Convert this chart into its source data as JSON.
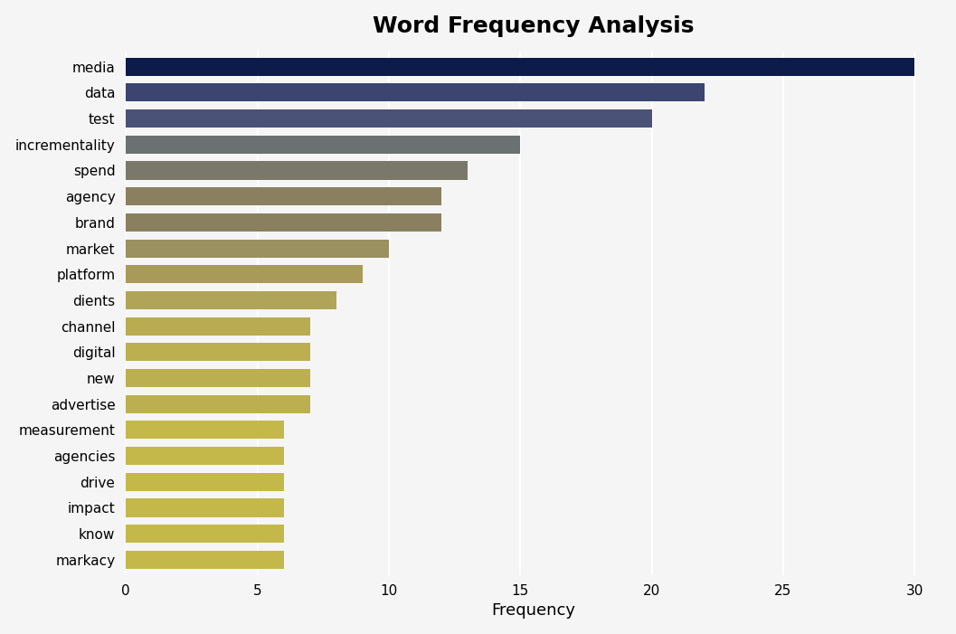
{
  "title": "Word Frequency Analysis",
  "xlabel": "Frequency",
  "categories": [
    "media",
    "data",
    "test",
    "incrementality",
    "spend",
    "agency",
    "brand",
    "market",
    "platform",
    "dients",
    "channel",
    "digital",
    "new",
    "advertise",
    "measurement",
    "agencies",
    "drive",
    "impact",
    "know",
    "markacy"
  ],
  "values": [
    30,
    22,
    20,
    15,
    13,
    12,
    12,
    10,
    9,
    8,
    7,
    7,
    7,
    7,
    6,
    6,
    6,
    6,
    6,
    6
  ],
  "bar_colors": [
    "#0d1b4b",
    "#3b4570",
    "#4a5278",
    "#6b7070",
    "#7a7868",
    "#8a8060",
    "#8a8060",
    "#9a9060",
    "#a89a58",
    "#b0a458",
    "#b8ab50",
    "#bcaf50",
    "#bcaf50",
    "#bcaf50",
    "#c4b84a",
    "#c4b84a",
    "#c4b84a",
    "#c4b84a",
    "#c4b84a",
    "#c4b84a"
  ],
  "xlim": [
    0,
    31
  ],
  "xticks": [
    0,
    5,
    10,
    15,
    20,
    25,
    30
  ],
  "plot_bg_color": "#f5f5f5",
  "fig_bg_color": "#f5f5f5",
  "title_fontsize": 18,
  "axis_label_fontsize": 13,
  "tick_fontsize": 11,
  "bar_height": 0.7,
  "grid_color": "#ffffff",
  "grid_linewidth": 1.5
}
